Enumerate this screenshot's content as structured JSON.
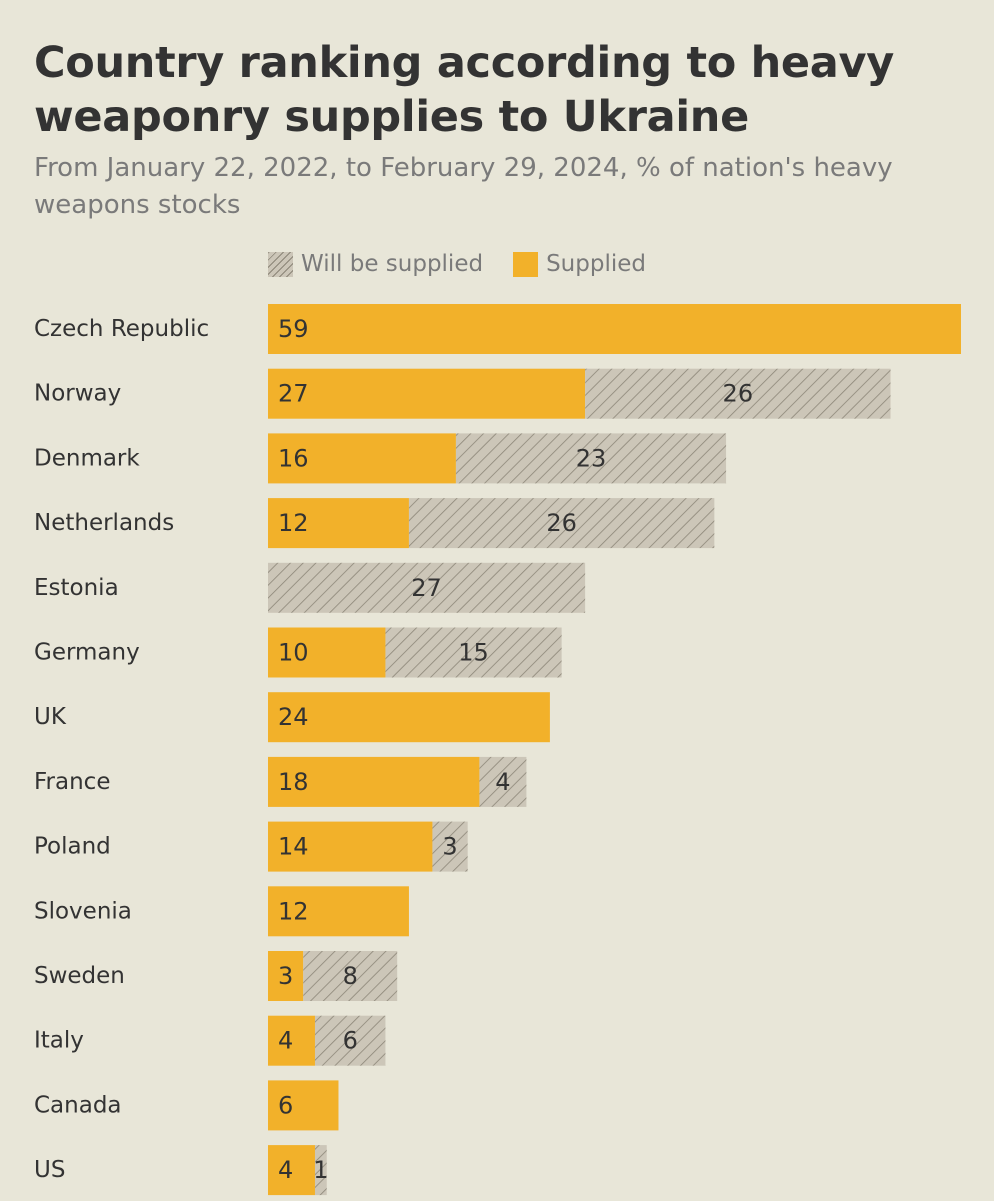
{
  "title": "Country ranking according to heavy weaponry supplies to Ukraine",
  "subtitle": "From January 22, 2022, to February 29, 2024, % of nation's heavy weapons stocks",
  "colors": {
    "background": "#e8e6d8",
    "supplied": "#f2b12a",
    "will_be_supplied": "#ccc6b8",
    "hatch_line": "#8c8678",
    "label_text": "#333333"
  },
  "legend": {
    "will_be_supplied": "Will be supplied",
    "supplied": "Supplied"
  },
  "chart_data": {
    "type": "bar",
    "orientation": "horizontal",
    "stacked": true,
    "title": "Country ranking according to heavy weaponry supplies to Ukraine",
    "subtitle": "From January 22, 2022, to February 29, 2024, % of nation's heavy weapons stocks",
    "legend_position": "top",
    "grid": false,
    "xlim": [
      0,
      59
    ],
    "categories": [
      "Czech Republic",
      "Norway",
      "Denmark",
      "Netherlands",
      "Estonia",
      "Germany",
      "UK",
      "France",
      "Poland",
      "Slovenia",
      "Sweden",
      "Italy",
      "Canada",
      "US"
    ],
    "series": [
      {
        "name": "Supplied",
        "values": [
          59,
          27,
          16,
          12,
          null,
          10,
          24,
          18,
          14,
          12,
          3,
          4,
          6,
          4
        ]
      },
      {
        "name": "Will be supplied",
        "values": [
          null,
          26,
          23,
          26,
          27,
          15,
          null,
          4,
          3,
          null,
          8,
          6,
          null,
          1
        ]
      }
    ]
  }
}
